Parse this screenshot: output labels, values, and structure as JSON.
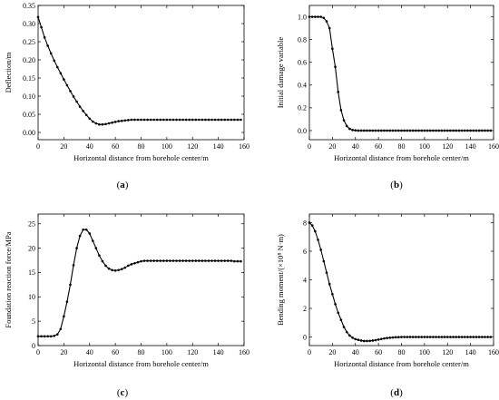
{
  "chart_data": [
    {
      "type": "line",
      "panel_label": "a",
      "title": "",
      "xlabel": "Horizontal distance from borehole center/m",
      "ylabel": "Deflection/m",
      "xlim": [
        0,
        160
      ],
      "ylim": [
        -0.02,
        0.35
      ],
      "xticks": [
        0,
        20,
        40,
        60,
        80,
        100,
        120,
        140,
        160
      ],
      "yticks": [
        0.0,
        0.05,
        0.1,
        0.15,
        0.2,
        0.25,
        0.3,
        0.35
      ],
      "ytick_labels": [
        "0.00",
        "0.05",
        "0.10",
        "0.15",
        "0.20",
        "0.25",
        "0.30",
        "0.35"
      ],
      "grid": false,
      "series": [
        {
          "x": [
            0,
            2.5,
            5,
            7.5,
            10,
            12.5,
            15,
            17.5,
            20,
            22.5,
            25,
            27.5,
            30,
            32.5,
            35,
            37.5,
            40,
            42.5,
            45,
            47.5,
            50,
            52.5,
            55,
            57.5,
            60,
            62.5,
            65,
            67.5,
            70,
            72.5,
            75,
            77.5,
            80,
            82.5,
            85,
            87.5,
            90,
            92.5,
            95,
            97.5,
            100,
            102.5,
            105,
            107.5,
            110,
            112.5,
            115,
            117.5,
            120,
            122.5,
            125,
            127.5,
            130,
            132.5,
            135,
            137.5,
            140,
            142.5,
            145,
            147.5,
            150,
            152.5,
            155,
            157.5
          ],
          "y": [
            0.318,
            0.29,
            0.262,
            0.239,
            0.218,
            0.198,
            0.18,
            0.163,
            0.146,
            0.13,
            0.114,
            0.099,
            0.085,
            0.071,
            0.059,
            0.048,
            0.038,
            0.03,
            0.025,
            0.022,
            0.022,
            0.023,
            0.025,
            0.027,
            0.029,
            0.031,
            0.032,
            0.033,
            0.034,
            0.035,
            0.035,
            0.035,
            0.035,
            0.035,
            0.035,
            0.035,
            0.035,
            0.035,
            0.035,
            0.035,
            0.035,
            0.035,
            0.035,
            0.035,
            0.035,
            0.035,
            0.035,
            0.035,
            0.035,
            0.035,
            0.035,
            0.035,
            0.035,
            0.035,
            0.035,
            0.035,
            0.035,
            0.035,
            0.035,
            0.035,
            0.035,
            0.035,
            0.035,
            0.035
          ]
        }
      ]
    },
    {
      "type": "line",
      "panel_label": "b",
      "title": "",
      "xlabel": "Horizontal distance from borehole center/m",
      "ylabel": "Initial damage variable",
      "xlim": [
        0,
        160
      ],
      "ylim": [
        -0.08,
        1.1
      ],
      "xticks": [
        0,
        20,
        40,
        60,
        80,
        100,
        120,
        140,
        160
      ],
      "yticks": [
        0.0,
        0.2,
        0.4,
        0.6,
        0.8,
        1.0
      ],
      "ytick_labels": [
        "0.0",
        "0.2",
        "0.4",
        "0.6",
        "0.8",
        "1.0"
      ],
      "grid": false,
      "series": [
        {
          "x": [
            0,
            2.5,
            5,
            7.5,
            10,
            12.5,
            15,
            17.5,
            20,
            22.5,
            25,
            27.5,
            30,
            32.5,
            35,
            37.5,
            40,
            42.5,
            45,
            47.5,
            50,
            52.5,
            55,
            57.5,
            60,
            62.5,
            65,
            67.5,
            70,
            72.5,
            75,
            77.5,
            80,
            82.5,
            85,
            87.5,
            90,
            92.5,
            95,
            97.5,
            100,
            102.5,
            105,
            107.5,
            110,
            112.5,
            115,
            117.5,
            120,
            122.5,
            125,
            127.5,
            130,
            132.5,
            135,
            137.5,
            140,
            142.5,
            145,
            147.5,
            150,
            152.5,
            155,
            157.5
          ],
          "y": [
            1.0,
            1.0,
            1.0,
            1.0,
            1.0,
            0.99,
            0.96,
            0.9,
            0.72,
            0.56,
            0.34,
            0.18,
            0.09,
            0.04,
            0.015,
            0.005,
            0.002,
            0.0,
            0.0,
            0.0,
            0.0,
            0.0,
            0.0,
            0.0,
            0.0,
            0.0,
            0.0,
            0.0,
            0.0,
            0.0,
            0.0,
            0.0,
            0.0,
            0.0,
            0.0,
            0.0,
            0.0,
            0.0,
            0.0,
            0.0,
            0.0,
            0.0,
            0.0,
            0.0,
            0.0,
            0.0,
            0.0,
            0.0,
            0.0,
            0.0,
            0.0,
            0.0,
            0.0,
            0.0,
            0.0,
            0.0,
            0.0,
            0.0,
            0.0,
            0.0,
            0.0,
            0.0,
            0.0,
            0.0
          ]
        }
      ]
    },
    {
      "type": "line",
      "panel_label": "c",
      "title": "",
      "xlabel": "Horizontal distance from borehole center/m",
      "ylabel": "Foundation reaction force/MPa",
      "xlim": [
        0,
        160
      ],
      "ylim": [
        0,
        27
      ],
      "xticks": [
        0,
        20,
        40,
        60,
        80,
        100,
        120,
        140,
        160
      ],
      "yticks": [
        0,
        5,
        10,
        15,
        20,
        25
      ],
      "ytick_labels": [
        "0",
        "5",
        "10",
        "15",
        "20",
        "25"
      ],
      "grid": false,
      "series": [
        {
          "x": [
            0,
            2.5,
            5,
            7.5,
            10,
            12.5,
            15,
            17.5,
            20,
            22.5,
            25,
            27.5,
            30,
            32.5,
            35,
            37.5,
            40,
            42.5,
            45,
            47.5,
            50,
            52.5,
            55,
            57.5,
            60,
            62.5,
            65,
            67.5,
            70,
            72.5,
            75,
            77.5,
            80,
            82.5,
            85,
            87.5,
            90,
            92.5,
            95,
            97.5,
            100,
            102.5,
            105,
            107.5,
            110,
            112.5,
            115,
            117.5,
            120,
            122.5,
            125,
            127.5,
            130,
            132.5,
            135,
            137.5,
            140,
            142.5,
            145,
            147.5,
            150,
            152.5,
            155,
            157.5
          ],
          "y": [
            1.9,
            1.9,
            1.9,
            1.9,
            1.9,
            2.0,
            2.3,
            3.4,
            6.0,
            9.0,
            12.5,
            16.5,
            20.0,
            22.5,
            23.8,
            23.8,
            23.0,
            21.5,
            20.0,
            18.5,
            17.3,
            16.4,
            15.8,
            15.5,
            15.4,
            15.5,
            15.7,
            16.0,
            16.4,
            16.7,
            16.9,
            17.1,
            17.3,
            17.4,
            17.4,
            17.4,
            17.4,
            17.4,
            17.4,
            17.4,
            17.4,
            17.4,
            17.4,
            17.4,
            17.4,
            17.4,
            17.4,
            17.4,
            17.4,
            17.4,
            17.4,
            17.4,
            17.4,
            17.4,
            17.4,
            17.4,
            17.4,
            17.4,
            17.4,
            17.4,
            17.4,
            17.3,
            17.3,
            17.3
          ]
        }
      ]
    },
    {
      "type": "line",
      "panel_label": "d",
      "title": "",
      "xlabel": "Horizontal distance from borehole center/m",
      "ylabel": "Bending moment/(×10⁸ N·m)",
      "xlim": [
        0,
        160
      ],
      "ylim": [
        -0.6,
        8.6
      ],
      "xticks": [
        0,
        20,
        40,
        60,
        80,
        100,
        120,
        140,
        160
      ],
      "yticks": [
        0,
        2,
        4,
        6,
        8
      ],
      "ytick_labels": [
        "0",
        "2",
        "4",
        "6",
        "8"
      ],
      "grid": false,
      "series": [
        {
          "x": [
            0,
            2.5,
            5,
            7.5,
            10,
            12.5,
            15,
            17.5,
            20,
            22.5,
            25,
            27.5,
            30,
            32.5,
            35,
            37.5,
            40,
            42.5,
            45,
            47.5,
            50,
            52.5,
            55,
            57.5,
            60,
            62.5,
            65,
            67.5,
            70,
            72.5,
            75,
            77.5,
            80,
            82.5,
            85,
            87.5,
            90,
            92.5,
            95,
            97.5,
            100,
            102.5,
            105,
            107.5,
            110,
            112.5,
            115,
            117.5,
            120,
            122.5,
            125,
            127.5,
            130,
            132.5,
            135,
            137.5,
            140,
            142.5,
            145,
            147.5,
            150,
            152.5,
            155,
            157.5
          ],
          "y": [
            8.0,
            7.8,
            7.4,
            6.8,
            6.1,
            5.3,
            4.5,
            3.7,
            3.0,
            2.3,
            1.7,
            1.2,
            0.7,
            0.35,
            0.1,
            -0.05,
            -0.15,
            -0.2,
            -0.25,
            -0.28,
            -0.28,
            -0.27,
            -0.25,
            -0.22,
            -0.18,
            -0.14,
            -0.1,
            -0.07,
            -0.05,
            -0.03,
            -0.02,
            -0.01,
            0.0,
            0.0,
            0.0,
            0.0,
            0.0,
            0.0,
            0.0,
            0.0,
            0.0,
            0.0,
            0.0,
            0.0,
            0.0,
            0.0,
            0.0,
            0.0,
            0.0,
            0.0,
            0.0,
            0.0,
            0.0,
            0.0,
            0.0,
            0.0,
            0.0,
            0.0,
            0.0,
            0.0,
            0.0,
            0.0,
            0.0,
            0.0
          ]
        }
      ]
    }
  ]
}
